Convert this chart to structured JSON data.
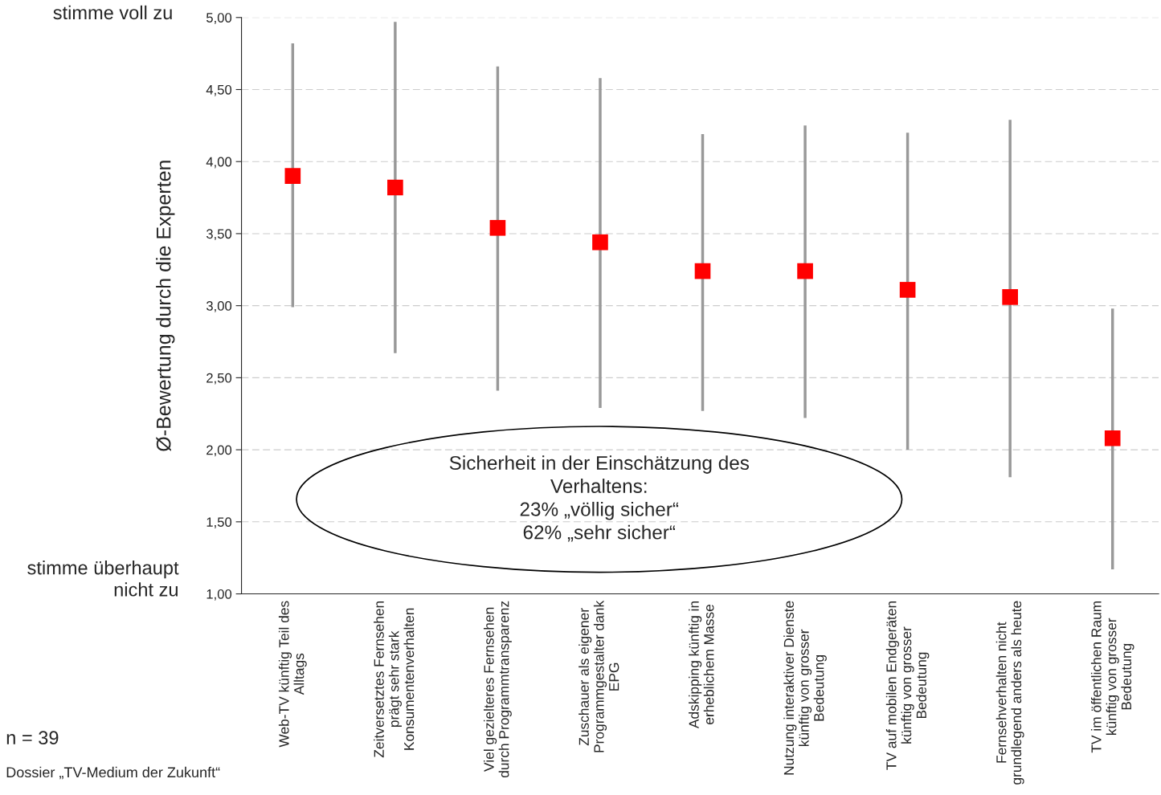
{
  "chart_data": {
    "type": "scatter",
    "ylabel": "Ø-Bewertung durch die Experten",
    "categories": [
      "Web-TV künftig Teil des\nAlltags",
      "Zeitversetztes Fernsehen\nprägt sehr stark\nKonsumentenverhalten",
      "Viel gezielteres Fernsehen\ndurch Programmtransparenz",
      "Zuschauer als eigener\nProgrammgestalter dank\nEPG",
      "Adskipping künftig in\nerheblichem Masse",
      "Nutzung interaktiver Dienste\nkünftig von grosser\nBedeutung",
      "TV auf mobilen Endgeräten\nkünftig von grosser\nBedeutung",
      "Fernsehverhalten nicht\ngrundlegend anders als heute",
      "TV im öffentlichen Raum\nkünftig von grosser\nBedeutung"
    ],
    "series": [
      {
        "color": "#ff0000",
        "values": [
          3.9,
          3.82,
          3.54,
          3.44,
          3.24,
          3.24,
          3.11,
          3.06,
          2.08
        ],
        "errors": [
          [
            2.99,
            4.82
          ],
          [
            2.67,
            4.97
          ],
          [
            2.41,
            4.66
          ],
          [
            2.29,
            4.58
          ],
          [
            2.27,
            4.19
          ],
          [
            2.22,
            4.25
          ],
          [
            2.0,
            4.2
          ],
          [
            1.81,
            4.29
          ],
          [
            1.17,
            2.98
          ]
        ]
      }
    ],
    "ylim": [
      1,
      5
    ],
    "yticks": [
      {
        "value": 1,
        "label": "1,00"
      },
      {
        "value": 1.5,
        "label": "1,50"
      },
      {
        "value": 2,
        "label": "2,00"
      },
      {
        "value": 2.5,
        "label": "2,50"
      },
      {
        "value": 3,
        "label": "3,00"
      },
      {
        "value": 3.5,
        "label": "3,50"
      },
      {
        "value": 4,
        "label": "4,00"
      },
      {
        "value": 4.5,
        "label": "4,50"
      },
      {
        "value": 5,
        "label": "5,00"
      }
    ],
    "grid": "y",
    "marker": "square",
    "legend": false,
    "annotations": [
      "stimme voll zu",
      "stimme überhaupt\nnicht zu",
      "Sicherheit in der Einschätzung des\nVerhaltens:\n23% „völlig sicher“\n62% „sehr sicher“",
      "n = 39",
      "Dossier „TV-Medium der Zukunft“"
    ]
  }
}
